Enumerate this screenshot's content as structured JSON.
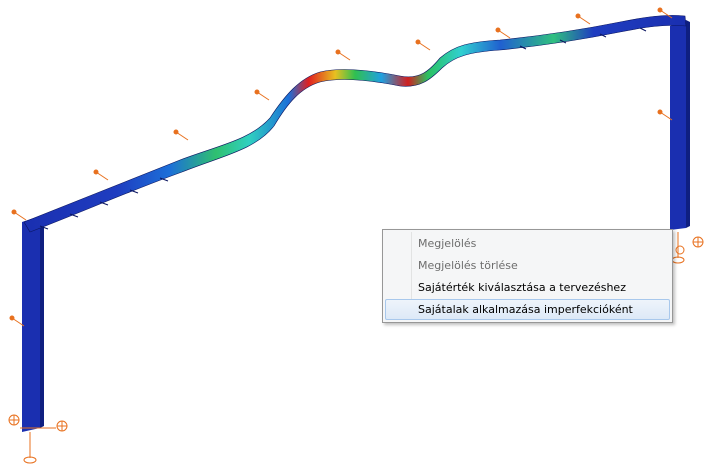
{
  "context_menu": {
    "items": [
      {
        "label": "Megjelölés",
        "enabled": false
      },
      {
        "label": "Megjelölés törlése",
        "enabled": false
      },
      {
        "label": "Sajátérték kiválasztása a tervezéshez",
        "enabled": true
      },
      {
        "label": "Sajátalak alkalmazása imperfekcióként",
        "enabled": true,
        "hovered": true
      }
    ]
  },
  "colors": {
    "frame": "#1a2fb0",
    "support": "#e8711f",
    "deform_high": "#e02020",
    "deform_mid": "#2ecc40",
    "background": "#ffffff"
  }
}
